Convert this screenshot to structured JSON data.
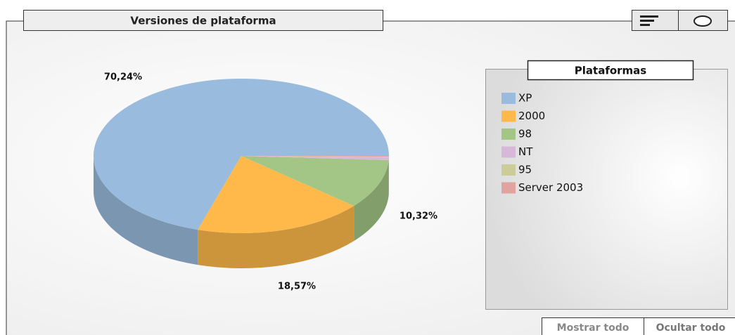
{
  "chart_data": {
    "type": "pie",
    "title": "Versiones de plataforma",
    "legend_title": "Plataformas",
    "categories": [
      "XP",
      "2000",
      "98",
      "NT",
      "95",
      "Server 2003"
    ],
    "values": [
      70.24,
      18.57,
      10.32,
      0.6,
      0.1,
      0.17
    ],
    "value_labels": [
      "70,24%",
      "18,57%",
      "10,32%",
      null,
      null,
      null
    ],
    "colors": [
      "#99bbdd",
      "#ffb94a",
      "#a3c586",
      "#d8b8d8",
      "#cccc99",
      "#e0a39f"
    ],
    "buttons": [
      "Mostrar todo",
      "Ocultar todo"
    ]
  }
}
